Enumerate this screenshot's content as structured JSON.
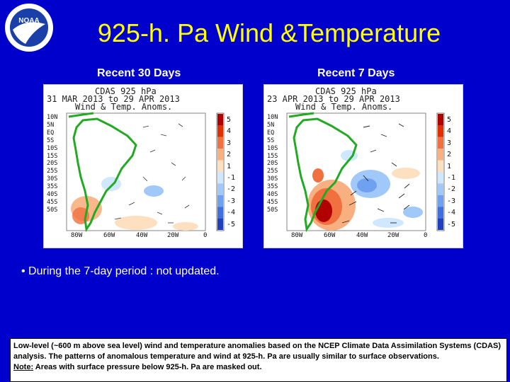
{
  "header": {
    "logo_text": "NOAA",
    "title": "925-h. Pa Wind &Temperature"
  },
  "panels": {
    "left": {
      "label": "Recent 30 Days",
      "head1": "CDAS 925 hPa",
      "head2": "31 MAR 2013 to 29 APR 2013",
      "head3": "Wind & Temp. Anoms."
    },
    "right": {
      "label": "Recent 7 Days",
      "head1": "CDAS 925 hPa",
      "head2": "23 APR 2013 to 29 APR 2013",
      "head3": "Wind & Temp. Anoms."
    }
  },
  "lat_labels": [
    "10N",
    "5N",
    "EQ",
    "5S",
    "10S",
    "15S",
    "20S",
    "25S",
    "30S",
    "35S",
    "40S",
    "45S",
    "50S"
  ],
  "lon_labels": [
    "80W",
    "60W",
    "40W",
    "20W",
    "0"
  ],
  "color_scale": {
    "values": [
      "5",
      "4",
      "3",
      "2",
      "1",
      "-1",
      "-2",
      "-3",
      "-4",
      "-5"
    ],
    "colors": [
      "#b00000",
      "#e03000",
      "#f07040",
      "#f8b080",
      "#fde0c0",
      "#d0e8ff",
      "#a0c8f8",
      "#70a0f0",
      "#4070e0",
      "#2040c0"
    ]
  },
  "bullet": "• During the 7-day period : not updated.",
  "footnote": {
    "text": "Low-level (~600 m above sea level) wind and temperature anomalies based on the NCEP Climate Data Assimilation Systems (CDAS) analysis. The patterns of anomalous temperature and wind at 925-h. Pa are usually similar to surface observations.",
    "note_label": "Note:",
    "note_text": " Areas with surface pressure below 925-h. Pa are masked out."
  }
}
